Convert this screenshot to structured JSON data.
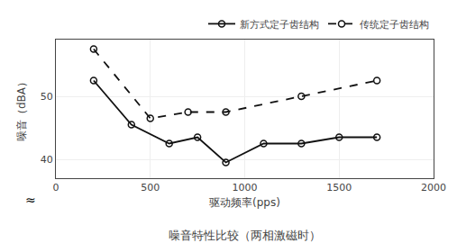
{
  "chart_data": {
    "type": "line",
    "title": "噪音特性比较（两相激磁时）",
    "x_label": "驱动频率(pps)",
    "y_label": "噪音（dBA）",
    "series": [
      {
        "name": "新方式定子齿结构",
        "color": "#111111",
        "line_style": "solid",
        "marker": "hollow circle",
        "x": [
          200,
          400,
          600,
          750,
          900,
          1100,
          1300,
          1500,
          1700
        ],
        "values": [
          52.5,
          45.5,
          42.5,
          43.5,
          39.5,
          42.5,
          42.5,
          43.5,
          43.5
        ]
      },
      {
        "name": "传统定子齿结构",
        "color": "#111111",
        "line_style": "dashed",
        "marker": "hollow circle",
        "x": [
          200,
          500,
          700,
          900,
          1300,
          1700
        ],
        "values": [
          57.5,
          46.5,
          47.5,
          47.5,
          50.0,
          52.5
        ]
      }
    ],
    "xlim": [
      0,
      2000
    ],
    "ylim": [
      37,
      59
    ],
    "xticks": [
      0,
      500,
      1000,
      1500,
      2000
    ],
    "yticks": [
      40,
      50
    ],
    "grid": true,
    "legend": "upper right",
    "annotations": [
      "≈"
    ]
  }
}
